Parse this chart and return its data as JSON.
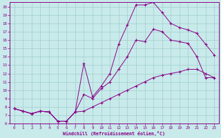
{
  "title": "",
  "xlabel": "Windchill (Refroidissement éolien,°C)",
  "xlim": [
    -0.5,
    23.5
  ],
  "ylim": [
    6,
    20.5
  ],
  "xticks": [
    0,
    1,
    2,
    3,
    4,
    5,
    6,
    7,
    8,
    9,
    10,
    11,
    12,
    13,
    14,
    15,
    16,
    17,
    18,
    19,
    20,
    21,
    22,
    23
  ],
  "yticks": [
    6,
    7,
    8,
    9,
    10,
    11,
    12,
    13,
    14,
    15,
    16,
    17,
    18,
    19,
    20
  ],
  "line_color": "#880088",
  "bg_color": "#c8eaea",
  "grid_color": "#a0cccc",
  "line1_x": [
    0,
    1,
    2,
    3,
    4,
    5,
    6,
    7,
    8,
    9,
    10,
    11,
    12,
    13,
    14,
    15,
    16,
    17,
    18,
    19,
    20,
    21,
    22,
    23
  ],
  "line1_y": [
    7.8,
    7.5,
    7.2,
    7.5,
    7.4,
    6.3,
    6.3,
    7.4,
    7.5,
    8.0,
    8.5,
    9.0,
    9.5,
    10.0,
    10.5,
    11.0,
    11.5,
    11.8,
    12.0,
    12.2,
    12.5,
    12.5,
    12.0,
    11.5
  ],
  "line2_x": [
    0,
    1,
    2,
    3,
    4,
    5,
    6,
    7,
    8,
    9,
    10,
    11,
    12,
    13,
    14,
    15,
    16,
    17,
    18,
    19,
    20,
    21,
    22,
    23
  ],
  "line2_y": [
    7.8,
    7.5,
    7.2,
    7.5,
    7.4,
    6.3,
    6.3,
    7.4,
    9.5,
    9.0,
    10.2,
    11.0,
    12.5,
    14.0,
    16.0,
    15.8,
    17.3,
    17.0,
    16.0,
    15.8,
    15.6,
    14.0,
    11.5,
    11.5
  ],
  "line3_x": [
    0,
    1,
    2,
    3,
    4,
    5,
    6,
    7,
    8,
    9,
    10,
    11,
    12,
    13,
    14,
    15,
    16,
    17,
    18,
    19,
    20,
    21,
    22,
    23
  ],
  "line3_y": [
    7.8,
    7.5,
    7.2,
    7.5,
    7.4,
    6.3,
    6.3,
    7.4,
    13.2,
    9.2,
    10.5,
    12.0,
    15.5,
    17.8,
    20.2,
    20.2,
    20.5,
    19.3,
    18.0,
    17.5,
    17.2,
    16.8,
    15.5,
    14.2
  ]
}
